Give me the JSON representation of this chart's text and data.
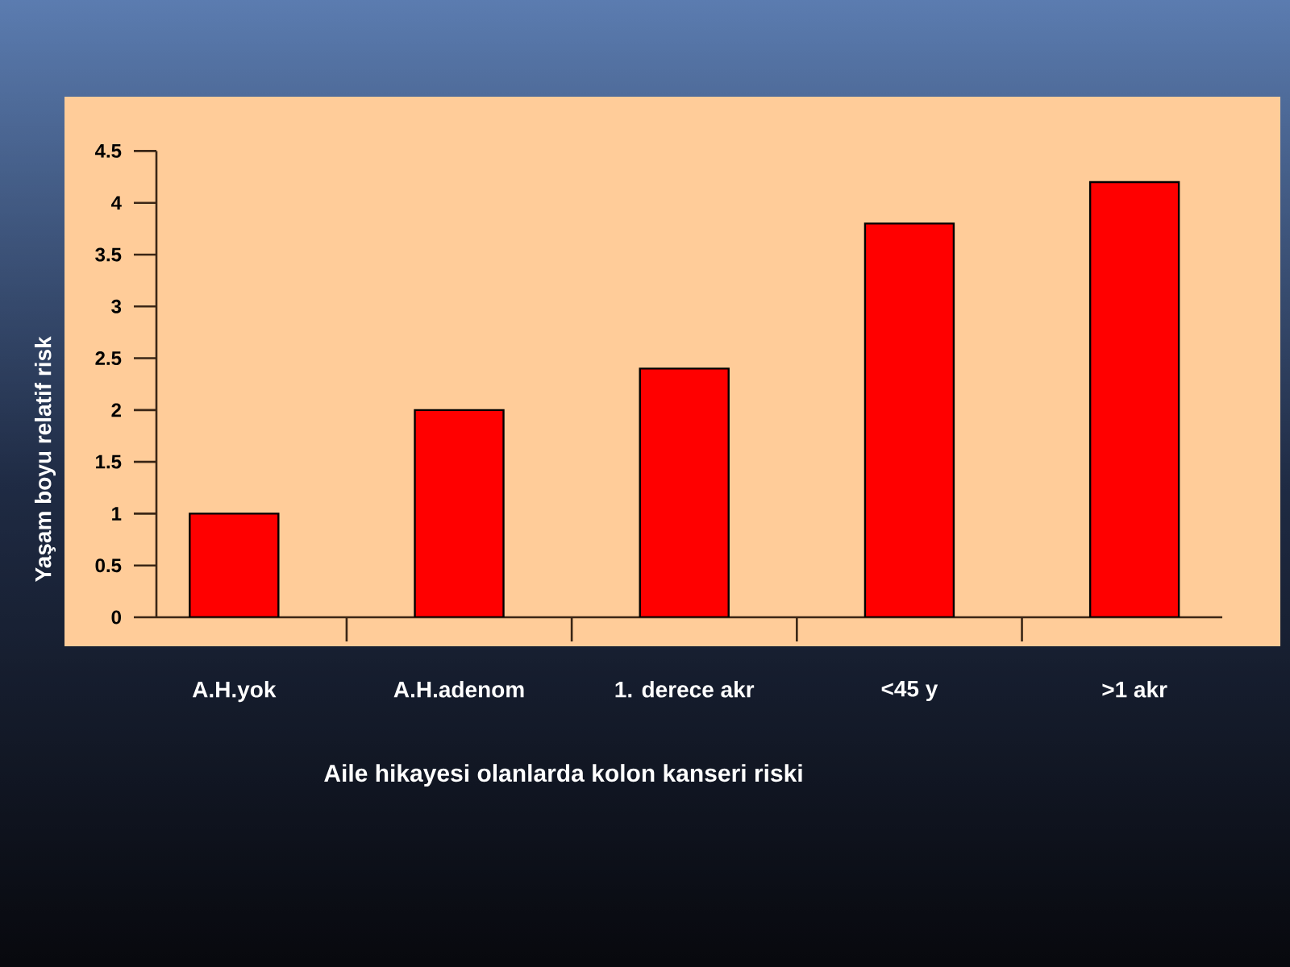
{
  "chart_data": {
    "type": "bar",
    "xlabel": "Aile hikayesi olanlarda kolon kanseri riski",
    "ylabel": "Yaşam boyu relatif risk",
    "categories": [
      "A.H.yok",
      "A.H.adenom",
      "1. derece akr",
      "<45 y",
      ">1 akr"
    ],
    "values": [
      1,
      2,
      2.4,
      3.8,
      4.2
    ],
    "color": "#ff0000",
    "ylim": [
      0,
      4.5
    ],
    "yticks": [
      0,
      0.5,
      1,
      1.5,
      2,
      2.5,
      3,
      3.5,
      4,
      4.5
    ]
  }
}
